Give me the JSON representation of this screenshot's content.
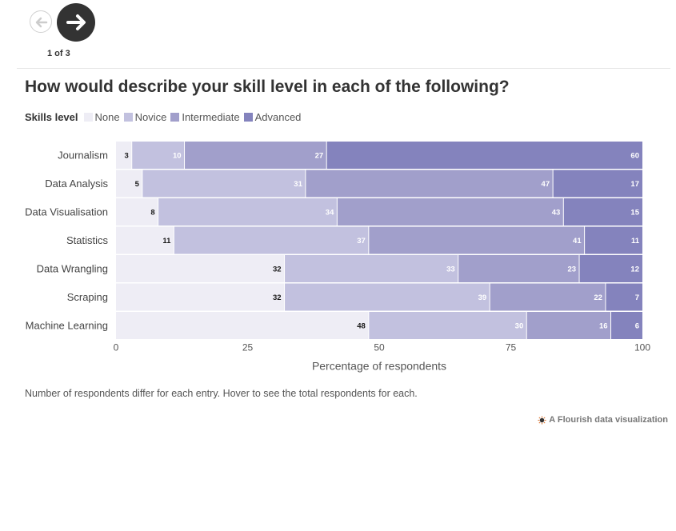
{
  "nav": {
    "page_indicator": "1 of 3",
    "prev_icon": "arrow-left-icon",
    "next_icon": "arrow-right-icon"
  },
  "title": "How would describe your skill level in each of the following?",
  "legend": {
    "title": "Skills level",
    "items": [
      "None",
      "Novice",
      "Intermediate",
      "Advanced"
    ]
  },
  "colors": {
    "None": "#eeedf5",
    "Novice": "#c2c1df",
    "Intermediate": "#a19fcb",
    "Advanced": "#8483bd",
    "dark_label": "#1a1a1a",
    "light_label": "#ffffff"
  },
  "chart_data": {
    "type": "bar",
    "orientation": "horizontal",
    "stacked": true,
    "categories": [
      "Journalism",
      "Data Analysis",
      "Data Visualisation",
      "Statistics",
      "Data Wrangling",
      "Scraping",
      "Machine Learning"
    ],
    "series": [
      {
        "name": "None",
        "values": [
          3,
          5,
          8,
          11,
          32,
          32,
          48
        ]
      },
      {
        "name": "Novice",
        "values": [
          10,
          31,
          34,
          37,
          33,
          39,
          30
        ]
      },
      {
        "name": "Intermediate",
        "values": [
          27,
          47,
          43,
          41,
          23,
          22,
          16
        ]
      },
      {
        "name": "Advanced",
        "values": [
          60,
          17,
          15,
          11,
          12,
          7,
          6
        ]
      }
    ],
    "xlabel": "Percentage of respondents",
    "ylabel": "",
    "xlim": [
      0,
      100
    ],
    "xticks": [
      0,
      25,
      50,
      75,
      100
    ],
    "legend_position": "top-left",
    "grid": false
  },
  "note": "Number of respondents differ for each entry. Hover to see the total respondents for each.",
  "attribution": "A Flourish data visualization"
}
